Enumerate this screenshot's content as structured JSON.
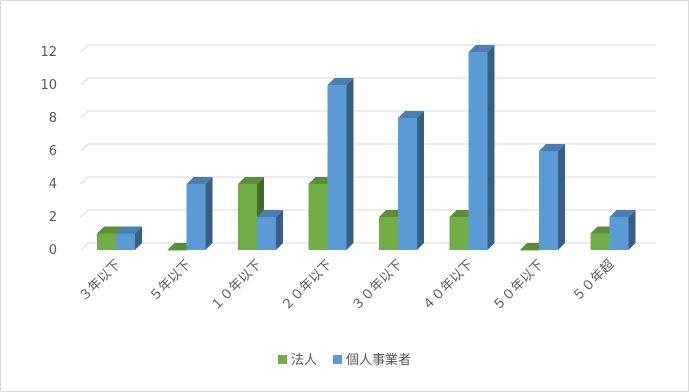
{
  "chart_data": {
    "type": "bar",
    "categories": [
      "３年以下",
      "５年以下",
      "１０年以下",
      "２０年以下",
      "３０年以下",
      "４０年以下",
      "５０年以下",
      "５０年超"
    ],
    "series": [
      {
        "name": "法人",
        "values": [
          1,
          0,
          4,
          4,
          2,
          2,
          0,
          1
        ],
        "color": "#70ad47"
      },
      {
        "name": "個人事業者",
        "values": [
          1,
          4,
          2,
          10,
          8,
          12,
          6,
          2
        ],
        "color": "#5b9bd5"
      }
    ],
    "yticks": [
      0,
      2,
      4,
      6,
      8,
      10,
      12
    ],
    "ylim": [
      0,
      12
    ],
    "grid": true,
    "legend_position": "bottom",
    "bar_style": "3d-clustered-column"
  }
}
